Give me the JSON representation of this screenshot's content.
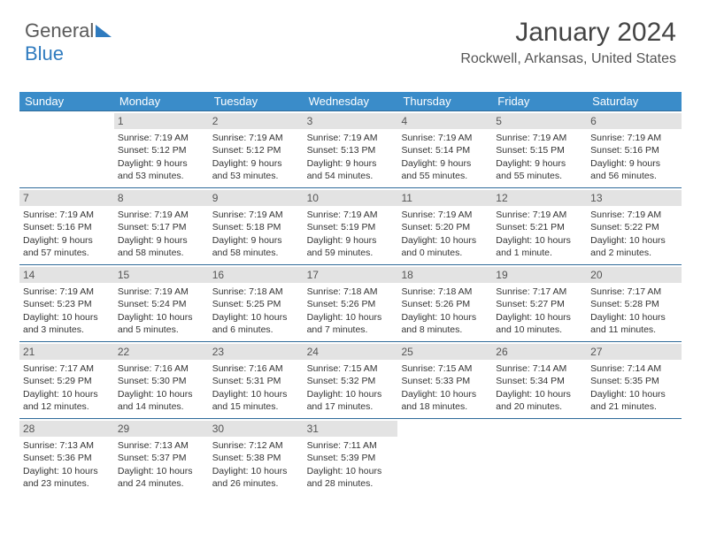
{
  "brand": {
    "part1": "General",
    "part2": "Blue"
  },
  "title": "January 2024",
  "location": "Rockwell, Arkansas, United States",
  "colors": {
    "header_bg": "#3a8cc9",
    "header_text": "#ffffff",
    "row_border": "#2f6b9a",
    "daynum_bg": "#e3e3e3",
    "text": "#333333",
    "brand_blue": "#2f7bbf"
  },
  "day_headers": [
    "Sunday",
    "Monday",
    "Tuesday",
    "Wednesday",
    "Thursday",
    "Friday",
    "Saturday"
  ],
  "weeks": [
    [
      null,
      {
        "n": "1",
        "sunrise": "7:19 AM",
        "sunset": "5:12 PM",
        "daylight": "9 hours and 53 minutes."
      },
      {
        "n": "2",
        "sunrise": "7:19 AM",
        "sunset": "5:12 PM",
        "daylight": "9 hours and 53 minutes."
      },
      {
        "n": "3",
        "sunrise": "7:19 AM",
        "sunset": "5:13 PM",
        "daylight": "9 hours and 54 minutes."
      },
      {
        "n": "4",
        "sunrise": "7:19 AM",
        "sunset": "5:14 PM",
        "daylight": "9 hours and 55 minutes."
      },
      {
        "n": "5",
        "sunrise": "7:19 AM",
        "sunset": "5:15 PM",
        "daylight": "9 hours and 55 minutes."
      },
      {
        "n": "6",
        "sunrise": "7:19 AM",
        "sunset": "5:16 PM",
        "daylight": "9 hours and 56 minutes."
      }
    ],
    [
      {
        "n": "7",
        "sunrise": "7:19 AM",
        "sunset": "5:16 PM",
        "daylight": "9 hours and 57 minutes."
      },
      {
        "n": "8",
        "sunrise": "7:19 AM",
        "sunset": "5:17 PM",
        "daylight": "9 hours and 58 minutes."
      },
      {
        "n": "9",
        "sunrise": "7:19 AM",
        "sunset": "5:18 PM",
        "daylight": "9 hours and 58 minutes."
      },
      {
        "n": "10",
        "sunrise": "7:19 AM",
        "sunset": "5:19 PM",
        "daylight": "9 hours and 59 minutes."
      },
      {
        "n": "11",
        "sunrise": "7:19 AM",
        "sunset": "5:20 PM",
        "daylight": "10 hours and 0 minutes."
      },
      {
        "n": "12",
        "sunrise": "7:19 AM",
        "sunset": "5:21 PM",
        "daylight": "10 hours and 1 minute."
      },
      {
        "n": "13",
        "sunrise": "7:19 AM",
        "sunset": "5:22 PM",
        "daylight": "10 hours and 2 minutes."
      }
    ],
    [
      {
        "n": "14",
        "sunrise": "7:19 AM",
        "sunset": "5:23 PM",
        "daylight": "10 hours and 3 minutes."
      },
      {
        "n": "15",
        "sunrise": "7:19 AM",
        "sunset": "5:24 PM",
        "daylight": "10 hours and 5 minutes."
      },
      {
        "n": "16",
        "sunrise": "7:18 AM",
        "sunset": "5:25 PM",
        "daylight": "10 hours and 6 minutes."
      },
      {
        "n": "17",
        "sunrise": "7:18 AM",
        "sunset": "5:26 PM",
        "daylight": "10 hours and 7 minutes."
      },
      {
        "n": "18",
        "sunrise": "7:18 AM",
        "sunset": "5:26 PM",
        "daylight": "10 hours and 8 minutes."
      },
      {
        "n": "19",
        "sunrise": "7:17 AM",
        "sunset": "5:27 PM",
        "daylight": "10 hours and 10 minutes."
      },
      {
        "n": "20",
        "sunrise": "7:17 AM",
        "sunset": "5:28 PM",
        "daylight": "10 hours and 11 minutes."
      }
    ],
    [
      {
        "n": "21",
        "sunrise": "7:17 AM",
        "sunset": "5:29 PM",
        "daylight": "10 hours and 12 minutes."
      },
      {
        "n": "22",
        "sunrise": "7:16 AM",
        "sunset": "5:30 PM",
        "daylight": "10 hours and 14 minutes."
      },
      {
        "n": "23",
        "sunrise": "7:16 AM",
        "sunset": "5:31 PM",
        "daylight": "10 hours and 15 minutes."
      },
      {
        "n": "24",
        "sunrise": "7:15 AM",
        "sunset": "5:32 PM",
        "daylight": "10 hours and 17 minutes."
      },
      {
        "n": "25",
        "sunrise": "7:15 AM",
        "sunset": "5:33 PM",
        "daylight": "10 hours and 18 minutes."
      },
      {
        "n": "26",
        "sunrise": "7:14 AM",
        "sunset": "5:34 PM",
        "daylight": "10 hours and 20 minutes."
      },
      {
        "n": "27",
        "sunrise": "7:14 AM",
        "sunset": "5:35 PM",
        "daylight": "10 hours and 21 minutes."
      }
    ],
    [
      {
        "n": "28",
        "sunrise": "7:13 AM",
        "sunset": "5:36 PM",
        "daylight": "10 hours and 23 minutes."
      },
      {
        "n": "29",
        "sunrise": "7:13 AM",
        "sunset": "5:37 PM",
        "daylight": "10 hours and 24 minutes."
      },
      {
        "n": "30",
        "sunrise": "7:12 AM",
        "sunset": "5:38 PM",
        "daylight": "10 hours and 26 minutes."
      },
      {
        "n": "31",
        "sunrise": "7:11 AM",
        "sunset": "5:39 PM",
        "daylight": "10 hours and 28 minutes."
      },
      null,
      null,
      null
    ]
  ],
  "labels": {
    "sunrise": "Sunrise:",
    "sunset": "Sunset:",
    "daylight": "Daylight:"
  }
}
